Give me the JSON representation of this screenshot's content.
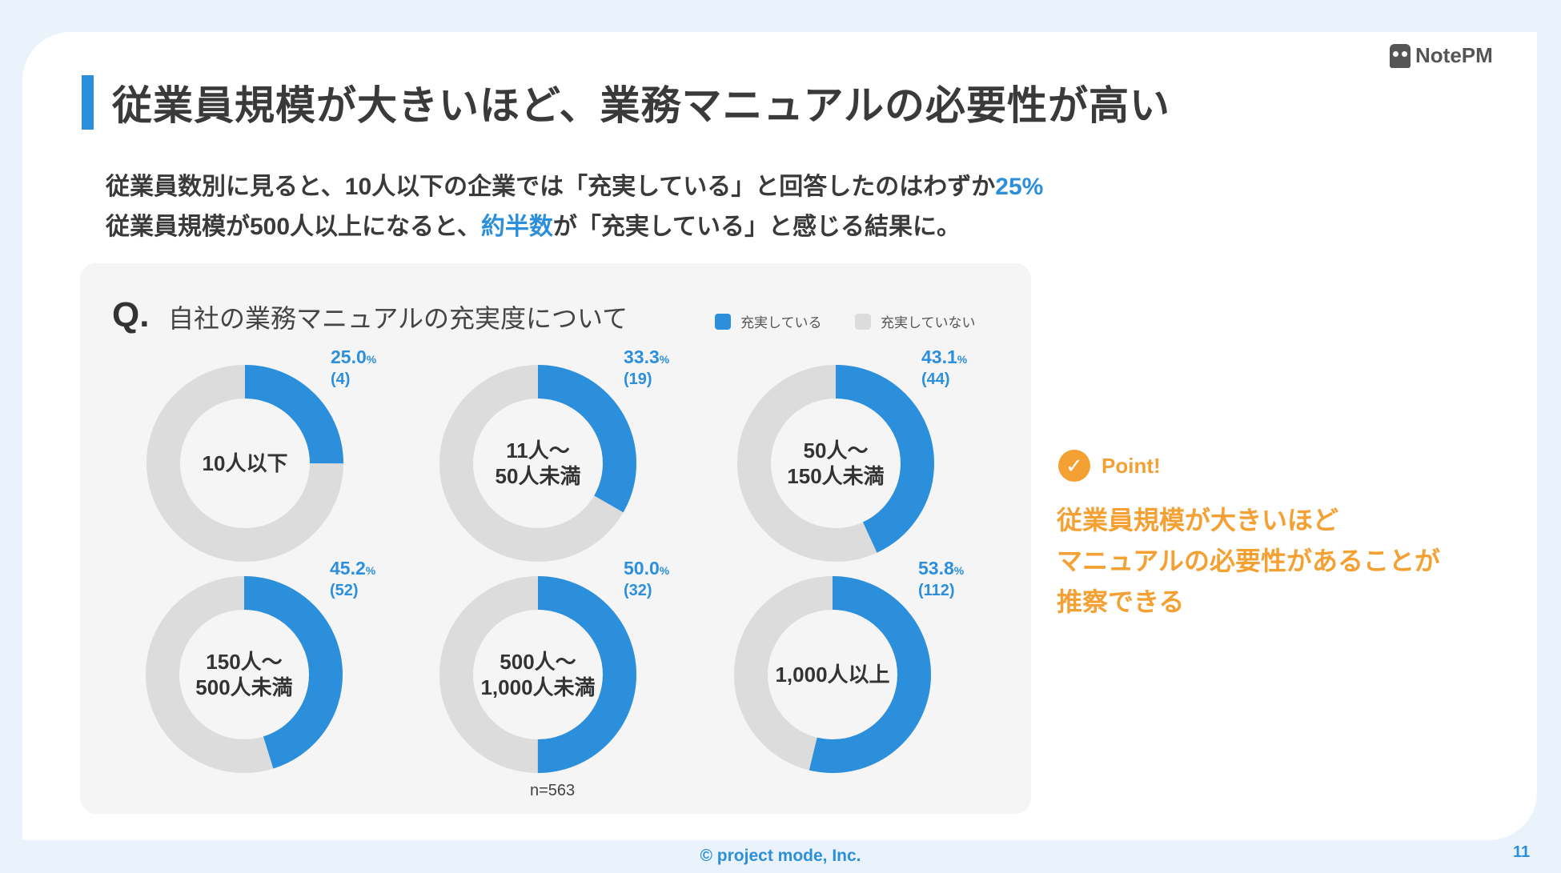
{
  "brand": "NotePM",
  "title": "従業員規模が大きいほど、業務マニュアルの必要性が高い",
  "lead": {
    "line1_pre": "従業員数別に見ると、10人以下の企業では「充実している」と回答したのはわずか",
    "line1_hl": "25%",
    "line2_pre": "従業員規模が500人以上になると、",
    "line2_hl": "約半数",
    "line2_post": "が「充実している」と感じる結果に。"
  },
  "question_marker": "Q.",
  "question": "自社の業務マニュアルの充実度について",
  "colors": {
    "accent": "#2c8fdc",
    "rest": "#dcdcdc",
    "point": "#f5a033"
  },
  "chart_data": {
    "type": "pie",
    "variant": "donut",
    "legend": [
      "充実している",
      "充実していない"
    ],
    "legend_position": "top-right",
    "sample_note": "n=563",
    "charts": [
      {
        "label_lines": [
          "10人以下"
        ],
        "value": 25.0,
        "value_text": "25.0",
        "unit": "%",
        "count": "(4)"
      },
      {
        "label_lines": [
          "11人〜",
          "50人未満"
        ],
        "value": 33.3,
        "value_text": "33.3",
        "unit": "%",
        "count": "(19)"
      },
      {
        "label_lines": [
          "50人〜",
          "150人未満"
        ],
        "value": 43.1,
        "value_text": "43.1",
        "unit": "%",
        "count": "(44)"
      },
      {
        "label_lines": [
          "150人〜",
          "500人未満"
        ],
        "value": 45.2,
        "value_text": "45.2",
        "unit": "%",
        "count": "(52)"
      },
      {
        "label_lines": [
          "500人〜",
          "1,000人未満"
        ],
        "value": 50.0,
        "value_text": "50.0",
        "unit": "%",
        "count": "(32)"
      },
      {
        "label_lines": [
          "1,000人以上"
        ],
        "value": 53.8,
        "value_text": "53.8",
        "unit": "%",
        "count": "(112)"
      }
    ]
  },
  "point": {
    "label": "Point!",
    "lines": [
      "従業員規模が大きいほど",
      "マニュアルの必要性があることが",
      "推察できる"
    ]
  },
  "footer": "© project mode, Inc.",
  "page_number": "11"
}
